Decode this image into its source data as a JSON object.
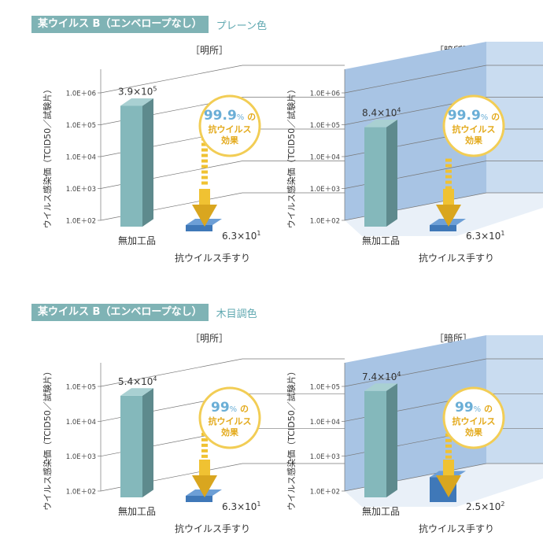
{
  "sections": [
    {
      "tag": "某ウイルス B（エンベロープなし）",
      "finish": "プレーン色"
    },
    {
      "tag": "某ウイルス B（エンベロープなし）",
      "finish": "木目調色"
    }
  ],
  "ylabel": "ウイルス感染価（TCID50／試験片）",
  "categories": [
    "無加工品",
    "抗ウイルス手すり"
  ],
  "chart_data": [
    {
      "type": "bar",
      "condition": "［明所］",
      "background": "plain",
      "categories": [
        "無加工品",
        "抗ウイルス手すり"
      ],
      "ytick_labels": [
        "1.0E＋02",
        "1.0E＋03",
        "1.0E＋04",
        "1.0E＋05",
        "1.0E＋06"
      ],
      "ylim_exp": [
        2,
        6
      ],
      "scale": "log",
      "values": [
        390000,
        63
      ],
      "value_labels": [
        {
          "mant": "3.9×10",
          "exp": "5"
        },
        {
          "mant": "6.3×10",
          "exp": "1"
        }
      ],
      "reduction": {
        "pct": "99.9",
        "unit": "%",
        "no": "の",
        "line1": "抗ウイルス",
        "line2": "効果"
      }
    },
    {
      "type": "bar",
      "condition": "［暗所］",
      "background": "blue",
      "categories": [
        "無加工品",
        "抗ウイルス手すり"
      ],
      "ytick_labels": [
        "1.0E＋02",
        "1.0E＋03",
        "1.0E＋04",
        "1.0E＋05",
        "1.0E＋06"
      ],
      "ylim_exp": [
        2,
        6
      ],
      "scale": "log",
      "values": [
        84000,
        63
      ],
      "value_labels": [
        {
          "mant": "8.4×10",
          "exp": "4"
        },
        {
          "mant": "6.3×10",
          "exp": "1"
        }
      ],
      "reduction": {
        "pct": "99.9",
        "unit": "%",
        "no": "の",
        "line1": "抗ウイルス",
        "line2": "効果"
      }
    },
    {
      "type": "bar",
      "condition": "［明所］",
      "background": "plain",
      "categories": [
        "無加工品",
        "抗ウイルス手すり"
      ],
      "ytick_labels": [
        "1.0E＋02",
        "1.0E＋03",
        "1.0E＋04",
        "1.0E＋05"
      ],
      "ylim_exp": [
        2,
        5
      ],
      "scale": "log",
      "values": [
        54000,
        63
      ],
      "value_labels": [
        {
          "mant": "5.4×10",
          "exp": "4"
        },
        {
          "mant": "6.3×10",
          "exp": "1"
        }
      ],
      "reduction": {
        "pct": "99",
        "unit": "%",
        "no": "の",
        "line1": "抗ウイルス",
        "line2": "効果"
      }
    },
    {
      "type": "bar",
      "condition": "［暗所］",
      "background": "blue",
      "categories": [
        "無加工品",
        "抗ウイルス手すり"
      ],
      "ytick_labels": [
        "1.0E＋02",
        "1.0E＋03",
        "1.0E＋04",
        "1.0E＋05"
      ],
      "ylim_exp": [
        2,
        5
      ],
      "scale": "log",
      "values": [
        74000,
        250
      ],
      "value_labels": [
        {
          "mant": "7.4×10",
          "exp": "4"
        },
        {
          "mant": "2.5×10",
          "exp": "2"
        }
      ],
      "reduction": {
        "pct": "99",
        "unit": "%",
        "no": "の",
        "line1": "抗ウイルス",
        "line2": "効果"
      }
    }
  ],
  "colors": {
    "bar_front": "#84b8bb",
    "bar_side": "#5e8a8d",
    "bar_top": "#a9d0d2",
    "treated_front": "#3f78b8",
    "treated_top": "#6d9fd6",
    "arrow": "#f0c232",
    "arrow_dark": "#d9a61f",
    "badge_ring": "#f2cd55",
    "badge_text": "#e3a91a",
    "badge_pct": "#6aaed6",
    "panel_back": "#c9dcf0",
    "panel_left": "#a8c4e4",
    "grid": "#777777",
    "section_tag": "#7fb3b5",
    "section_sub": "#5fa8b0"
  }
}
